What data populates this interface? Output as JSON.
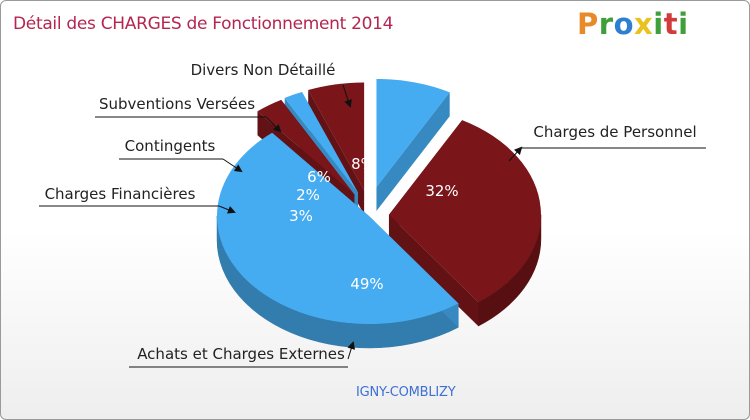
{
  "header": {
    "title": "Détail des CHARGES de Fonctionnement 2014",
    "logo_text": "Proxiti",
    "logo_letters": [
      "P",
      "r",
      "o",
      "x",
      "i",
      "t",
      "i"
    ]
  },
  "footer": {
    "city": "IGNY-COMBLIZY"
  },
  "colors": {
    "dark_red": "#7a1519",
    "blue": "#45acf1",
    "title": "#b42552",
    "city": "#3d6fd6"
  },
  "chart_data": {
    "type": "pie",
    "title": "Détail des CHARGES de Fonctionnement 2014",
    "slices": [
      {
        "name": "Divers Non Détaillé",
        "value": 8,
        "label": "8%",
        "color": "#45acf1",
        "exploded": true
      },
      {
        "name": "Charges de Personnel",
        "value": 32,
        "label": "32%",
        "color": "#7a1519",
        "exploded": true
      },
      {
        "name": "Achats et Charges Externes",
        "value": 49,
        "label": "49%",
        "color": "#45acf1",
        "exploded": false
      },
      {
        "name": "Charges Financières",
        "value": 3,
        "label": "3%",
        "color": "#7a1519",
        "exploded": true
      },
      {
        "name": "Contingents",
        "value": 2,
        "label": "2%",
        "color": "#45acf1",
        "exploded": true
      },
      {
        "name": "Subventions Versées",
        "value": 6,
        "label": "6%",
        "color": "#7a1519",
        "exploded": true
      }
    ]
  }
}
